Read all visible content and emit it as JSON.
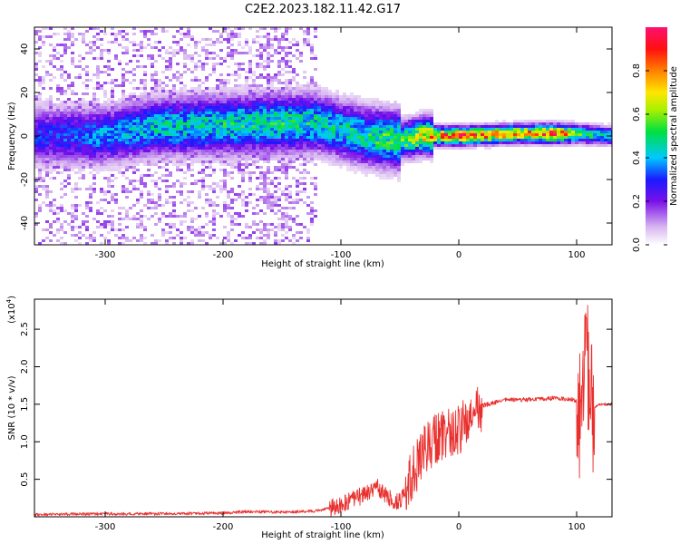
{
  "title": "C2E2.2023.182.11.42.G17",
  "chart_data": [
    {
      "type": "heatmap",
      "xlabel": "Height of straight line (km)",
      "ylabel": "Frequency (Hz)",
      "xlim": [
        -360,
        130
      ],
      "ylim": [
        -50,
        50
      ],
      "xticks": [
        -300,
        -200,
        -100,
        0,
        100
      ],
      "yticks": [
        -40,
        -20,
        0,
        20,
        40
      ],
      "colorbar": {
        "label": "Normalized spectral amplitude",
        "range": [
          0.0,
          1.0
        ],
        "ticks": [
          0.0,
          0.2,
          0.4,
          0.6,
          0.8
        ],
        "colormap": "rainbow (white, purple, blue, cyan, green, yellow, orange, red, magenta)"
      },
      "description_series": {
        "ridge_center_hz": [
          {
            "x": -350,
            "y": 0
          },
          {
            "x": -300,
            "y": 0
          },
          {
            "x": -260,
            "y": 4
          },
          {
            "x": -200,
            "y": 5
          },
          {
            "x": -150,
            "y": 6
          },
          {
            "x": -120,
            "y": 6
          },
          {
            "x": -100,
            "y": 3
          },
          {
            "x": -80,
            "y": 0
          },
          {
            "x": -50,
            "y": -2
          },
          {
            "x": -30,
            "y": 0
          },
          {
            "x": 0,
            "y": 0
          },
          {
            "x": 50,
            "y": 1
          },
          {
            "x": 100,
            "y": 1
          },
          {
            "x": 130,
            "y": 0
          }
        ],
        "peak_amplitude": [
          {
            "x": -350,
            "y": 0.3
          },
          {
            "x": -250,
            "y": 0.45
          },
          {
            "x": -150,
            "y": 0.5
          },
          {
            "x": -100,
            "y": 0.45
          },
          {
            "x": -50,
            "y": 0.55
          },
          {
            "x": -20,
            "y": 0.8
          },
          {
            "x": 0,
            "y": 0.9
          },
          {
            "x": 50,
            "y": 0.75
          },
          {
            "x": 80,
            "y": 0.95
          },
          {
            "x": 100,
            "y": 0.6
          },
          {
            "x": 130,
            "y": 0.4
          }
        ]
      }
    },
    {
      "type": "line",
      "xlabel": "Height of straight line (km)",
      "ylabel": "SNR (10 * v/v)",
      "multiplier": "(x10",
      "multiplier_exp": "4",
      "multiplier_close": ")",
      "xlim": [
        -360,
        130
      ],
      "ylim": [
        0,
        2.9
      ],
      "xticks": [
        -300,
        -200,
        -100,
        0,
        100
      ],
      "yticks": [
        0.5,
        1.0,
        1.5,
        2.0,
        2.5
      ],
      "series": [
        {
          "color": "#e8302e",
          "points": [
            {
              "x": -360,
              "y": 0.03
            },
            {
              "x": -300,
              "y": 0.04
            },
            {
              "x": -250,
              "y": 0.04
            },
            {
              "x": -200,
              "y": 0.05
            },
            {
              "x": -180,
              "y": 0.07
            },
            {
              "x": -150,
              "y": 0.06
            },
            {
              "x": -120,
              "y": 0.08
            },
            {
              "x": -100,
              "y": 0.15
            },
            {
              "x": -80,
              "y": 0.3
            },
            {
              "x": -70,
              "y": 0.4
            },
            {
              "x": -60,
              "y": 0.25
            },
            {
              "x": -50,
              "y": 0.2
            },
            {
              "x": -45,
              "y": 0.3
            },
            {
              "x": -40,
              "y": 0.55
            },
            {
              "x": -30,
              "y": 0.85
            },
            {
              "x": -20,
              "y": 1.05
            },
            {
              "x": -10,
              "y": 1.1
            },
            {
              "x": 0,
              "y": 1.15
            },
            {
              "x": 10,
              "y": 1.3
            },
            {
              "x": 20,
              "y": 1.48
            },
            {
              "x": 40,
              "y": 1.56
            },
            {
              "x": 60,
              "y": 1.56
            },
            {
              "x": 80,
              "y": 1.58
            },
            {
              "x": 95,
              "y": 1.57
            },
            {
              "x": 100,
              "y": 1.55
            },
            {
              "x": 105,
              "y": 1.2
            },
            {
              "x": 108,
              "y": 2.5
            },
            {
              "x": 112,
              "y": 1.4
            },
            {
              "x": 118,
              "y": 1.5
            },
            {
              "x": 130,
              "y": 1.5
            }
          ]
        }
      ]
    }
  ]
}
